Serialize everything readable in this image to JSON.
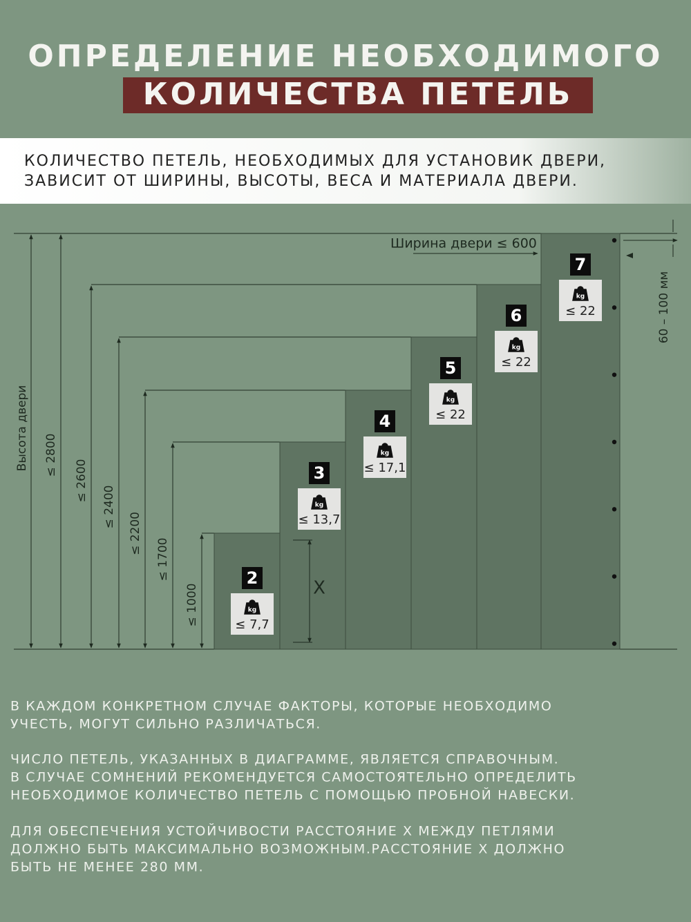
{
  "header": {
    "title": [
      "ОПРЕДЕЛЕНИЕ НЕОБХОДИМОГО",
      "КОЛИЧЕСТВА ПЕТЕЛЬ"
    ],
    "subtitle": [
      "КОЛИЧЕСТВО ПЕТЕЛЬ, НЕОБХОДИМЫХ ДЛЯ УСТАНОВИК ДВЕРИ,",
      "ЗАВИСИТ ОТ ШИРИНЫ, ВЫСОТЫ, ВЕСА И МАТЕРИАЛА ДВЕРИ."
    ]
  },
  "diagram": {
    "width_label": "Ширина двери ≤ 600",
    "height_label": "Высота двери",
    "gap_label": "60 – 100 мм",
    "distance_label": "X",
    "weight_icon": "kg",
    "doors": [
      {
        "hinges": 2,
        "weight": "≤ 7,7",
        "height": "≤ 1000"
      },
      {
        "hinges": 3,
        "weight": "≤ 13,7",
        "height": "≤ 1700"
      },
      {
        "hinges": 4,
        "weight": "≤ 17,1",
        "height": "≤ 2200"
      },
      {
        "hinges": 5,
        "weight": "≤ 22",
        "height": "≤ 2400"
      },
      {
        "hinges": 6,
        "weight": "≤ 22",
        "height": "≤ 2600"
      },
      {
        "hinges": 7,
        "weight": "≤ 22",
        "height": "≤ 2800"
      }
    ]
  },
  "notes": [
    [
      "В КАЖДОМ КОНКРЕТНОМ СЛУЧАЕ ФАКТОРЫ, КОТОРЫЕ НЕОБХОДИМО",
      "УЧЕСТЬ, МОГУТ СИЛЬНО РАЗЛИЧАТЬСЯ."
    ],
    [
      "ЧИСЛО ПЕТЕЛЬ, УКАЗАННЫХ В ДИАГРАММЕ, ЯВЛЯЕТСЯ СПРАВОЧНЫМ.",
      "В СЛУЧАЕ СОМНЕНИЙ РЕКОМЕНДУЕТСЯ САМОСТОЯТЕЛЬНО ОПРЕДЕЛИТЬ",
      "НЕОБХОДИМОЕ КОЛИЧЕСТВО ПЕТЕЛЬ С ПОМОЩЬЮ ПРОБНОЙ НАВЕСКИ."
    ],
    [
      "ДЛЯ ОБЕСПЕЧЕНИЯ УСТОЙЧИВОСТИ РАССТОЯНИЕ X МЕЖДУ ПЕТЛЯМИ",
      "ДОЛЖНО БЫТЬ МАКСИМАЛЬНО ВОЗМОЖНЫМ.РАССТОЯНИЕ X ДОЛЖНО",
      "БЫТЬ НЕ МЕНЕЕ 280 ММ."
    ]
  ]
}
